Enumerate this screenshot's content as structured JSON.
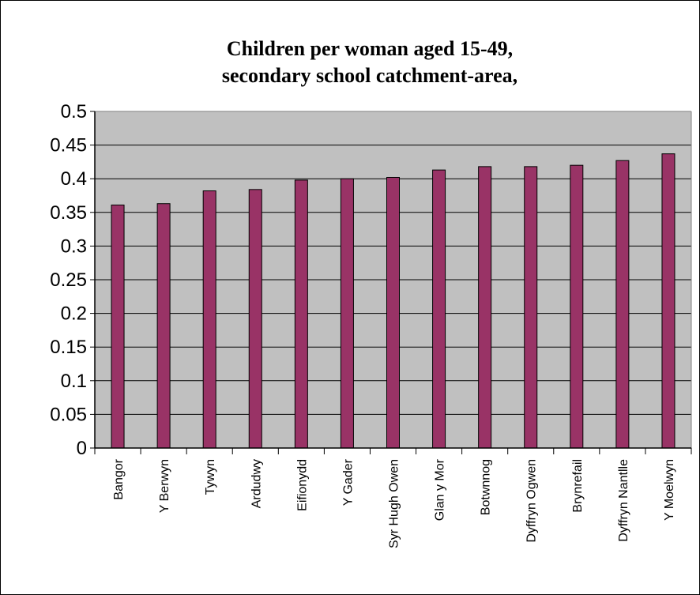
{
  "chart_data": {
    "type": "bar",
    "title": "Children per woman aged 15-49,",
    "subtitle": "secondary school catchment-area,",
    "xlabel": "",
    "ylabel": "",
    "ylim": [
      0,
      0.5
    ],
    "yticks": [
      "0",
      "0.05",
      "0.1",
      "0.15",
      "0.2",
      "0.25",
      "0.3",
      "0.35",
      "0.4",
      "0.45",
      "0.5"
    ],
    "ytick_values": [
      0,
      0.05,
      0.1,
      0.15,
      0.2,
      0.25,
      0.3,
      0.35,
      0.4,
      0.45,
      0.5
    ],
    "grid": true,
    "legend": "none",
    "categories": [
      "Bangor",
      "Y Berwyn",
      "Tywyn",
      "Ardudwy",
      "Eifionydd",
      "Y Gader",
      "Syr Hugh Owen",
      "Glan y Mor",
      "Botwnnog",
      "Dyffryn Ogwen",
      "Brynrefail",
      "Dyffryn Nantlle",
      "Y Moelwyn"
    ],
    "values": [
      0.361,
      0.363,
      0.382,
      0.384,
      0.398,
      0.4,
      0.402,
      0.413,
      0.418,
      0.418,
      0.42,
      0.427,
      0.437
    ],
    "colors": {
      "bar": "#993366",
      "plot_background": "#c0c0c0",
      "gridline": "#000000",
      "axis": "#000000"
    }
  }
}
